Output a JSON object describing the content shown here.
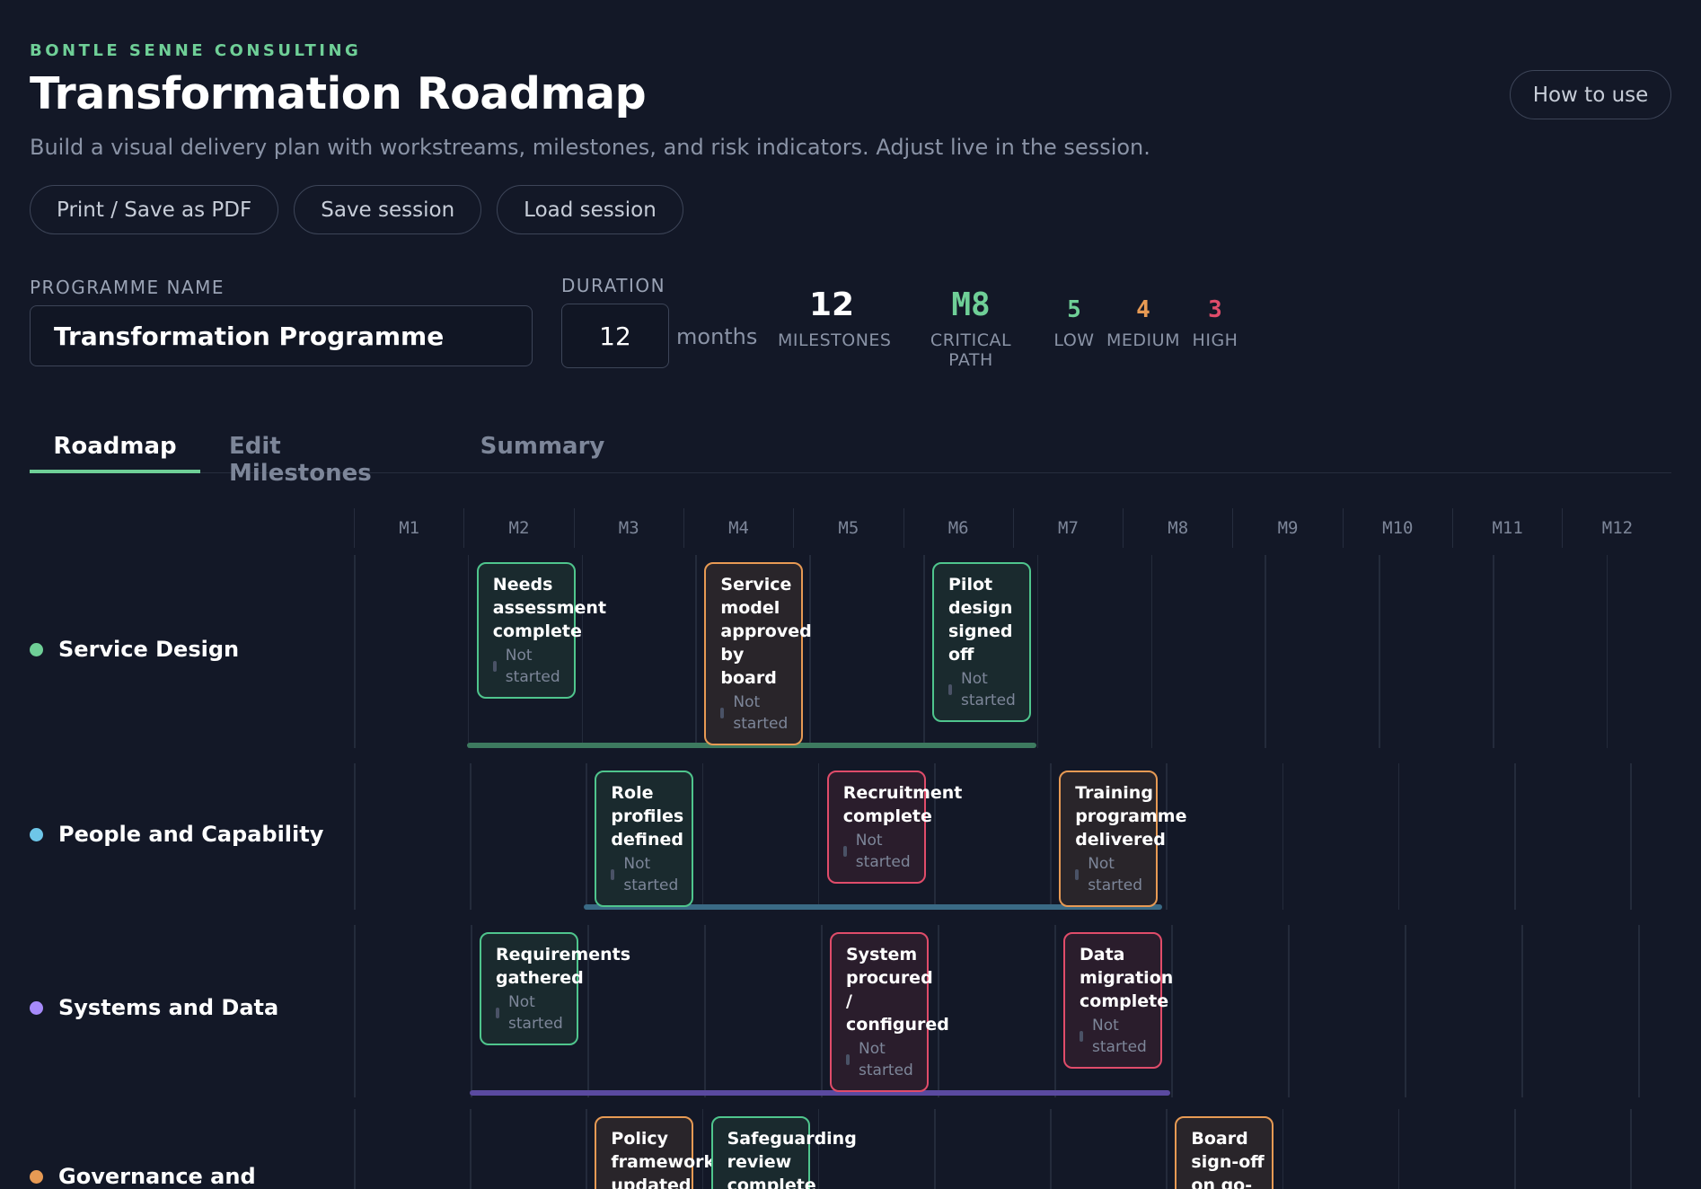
{
  "header": {
    "brand": "BONTLE SENNE CONSULTING",
    "title": "Transformation Roadmap",
    "subtitle": "Build a visual delivery plan with workstreams, milestones, and risk indicators. Adjust live in the session.",
    "help_label": "How to use"
  },
  "actions": {
    "print_label": "Print / Save as PDF",
    "save_label": "Save session",
    "load_label": "Load session"
  },
  "form": {
    "programme_label": "PROGRAMME NAME",
    "programme_value": "Transformation Programme",
    "duration_label": "DURATION",
    "duration_value": "12",
    "duration_unit": "months"
  },
  "stats": {
    "milestones": {
      "value": "12",
      "label": "MILESTONES"
    },
    "critical_path": {
      "value": "M8",
      "label": "CRITICAL PATH"
    },
    "low": {
      "value": "5",
      "label": "LOW"
    },
    "medium": {
      "value": "4",
      "label": "MEDIUM"
    },
    "high": {
      "value": "3",
      "label": "HIGH"
    }
  },
  "colors": {
    "accent": "#6fcf97",
    "low": "#4fc58d",
    "medium": "#e79a54",
    "high": "#e04c6a"
  },
  "tabs": [
    {
      "label": "Roadmap",
      "active": true
    },
    {
      "label": "Edit Milestones",
      "active": false
    },
    {
      "label": "Summary",
      "active": false
    }
  ],
  "months": [
    "M1",
    "M2",
    "M3",
    "M4",
    "M5",
    "M6",
    "M7",
    "M8",
    "M9",
    "M10",
    "M11",
    "M12"
  ],
  "workstreams": [
    {
      "name": "Service Design",
      "color": "#6fcf97",
      "bar_color": "#3d7a5f",
      "milestones": [
        {
          "name_lines": [
            "Needs",
            "assessment",
            "complete"
          ],
          "status_lines": [
            "Not",
            "started"
          ],
          "risk": "low"
        },
        {
          "name_lines": [
            "Service",
            "model",
            "approved",
            "by",
            "board"
          ],
          "status_lines": [
            "Not",
            "started"
          ],
          "risk": "med"
        },
        {
          "name_lines": [
            "Pilot",
            "design",
            "signed",
            "off"
          ],
          "status_lines": [
            "Not",
            "started"
          ],
          "risk": "low"
        }
      ]
    },
    {
      "name": "People and Capability",
      "color": "#6ec6e8",
      "bar_color": "#3a6a85",
      "milestones": [
        {
          "name_lines": [
            "Role",
            "profiles",
            "defined"
          ],
          "status_lines": [
            "Not",
            "started"
          ],
          "risk": "low"
        },
        {
          "name_lines": [
            "Recruitment",
            "complete"
          ],
          "status_lines": [
            "Not",
            "started"
          ],
          "risk": "high"
        },
        {
          "name_lines": [
            "Training",
            "programme",
            "delivered"
          ],
          "status_lines": [
            "Not",
            "started"
          ],
          "risk": "med"
        }
      ]
    },
    {
      "name": "Systems and Data",
      "color": "#a78bfa",
      "bar_color": "#5a4aa0",
      "milestones": [
        {
          "name_lines": [
            "Requirements",
            "gathered"
          ],
          "status_lines": [
            "Not",
            "started"
          ],
          "risk": "low"
        },
        {
          "name_lines": [
            "System",
            "procured",
            "/",
            "configured"
          ],
          "status_lines": [
            "Not",
            "started"
          ],
          "risk": "high"
        },
        {
          "name_lines": [
            "Data",
            "migration",
            "complete"
          ],
          "status_lines": [
            "Not",
            "started"
          ],
          "risk": "high"
        }
      ]
    },
    {
      "name": "Governance and",
      "color": "#e79a54",
      "milestones": [
        {
          "name_lines": [
            "Policy",
            "framework",
            "updated"
          ],
          "risk": "med"
        },
        {
          "name_lines": [
            "Safeguarding",
            "review",
            "complete"
          ],
          "risk": "low"
        },
        {
          "name_lines": [
            "Board",
            "sign-off",
            "on go-"
          ],
          "risk": "med"
        }
      ]
    }
  ]
}
